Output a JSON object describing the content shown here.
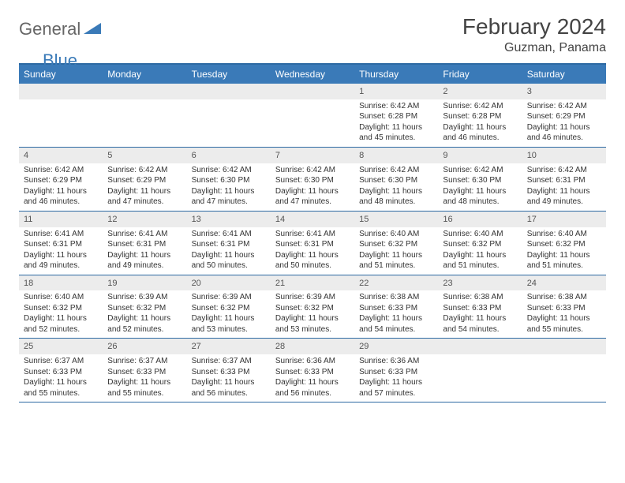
{
  "logo": {
    "general": "General",
    "blue": "Blue"
  },
  "title": "February 2024",
  "location": "Guzman, Panama",
  "colors": {
    "header_bg": "#3a7ab8",
    "border": "#2d6aa3",
    "daynum_bg": "#ececec",
    "text": "#333333"
  },
  "day_names": [
    "Sunday",
    "Monday",
    "Tuesday",
    "Wednesday",
    "Thursday",
    "Friday",
    "Saturday"
  ],
  "weeks": [
    [
      {
        "n": "",
        "sr": "",
        "ss": "",
        "dl": ""
      },
      {
        "n": "",
        "sr": "",
        "ss": "",
        "dl": ""
      },
      {
        "n": "",
        "sr": "",
        "ss": "",
        "dl": ""
      },
      {
        "n": "",
        "sr": "",
        "ss": "",
        "dl": ""
      },
      {
        "n": "1",
        "sr": "Sunrise: 6:42 AM",
        "ss": "Sunset: 6:28 PM",
        "dl": "Daylight: 11 hours and 45 minutes."
      },
      {
        "n": "2",
        "sr": "Sunrise: 6:42 AM",
        "ss": "Sunset: 6:28 PM",
        "dl": "Daylight: 11 hours and 46 minutes."
      },
      {
        "n": "3",
        "sr": "Sunrise: 6:42 AM",
        "ss": "Sunset: 6:29 PM",
        "dl": "Daylight: 11 hours and 46 minutes."
      }
    ],
    [
      {
        "n": "4",
        "sr": "Sunrise: 6:42 AM",
        "ss": "Sunset: 6:29 PM",
        "dl": "Daylight: 11 hours and 46 minutes."
      },
      {
        "n": "5",
        "sr": "Sunrise: 6:42 AM",
        "ss": "Sunset: 6:29 PM",
        "dl": "Daylight: 11 hours and 47 minutes."
      },
      {
        "n": "6",
        "sr": "Sunrise: 6:42 AM",
        "ss": "Sunset: 6:30 PM",
        "dl": "Daylight: 11 hours and 47 minutes."
      },
      {
        "n": "7",
        "sr": "Sunrise: 6:42 AM",
        "ss": "Sunset: 6:30 PM",
        "dl": "Daylight: 11 hours and 47 minutes."
      },
      {
        "n": "8",
        "sr": "Sunrise: 6:42 AM",
        "ss": "Sunset: 6:30 PM",
        "dl": "Daylight: 11 hours and 48 minutes."
      },
      {
        "n": "9",
        "sr": "Sunrise: 6:42 AM",
        "ss": "Sunset: 6:30 PM",
        "dl": "Daylight: 11 hours and 48 minutes."
      },
      {
        "n": "10",
        "sr": "Sunrise: 6:42 AM",
        "ss": "Sunset: 6:31 PM",
        "dl": "Daylight: 11 hours and 49 minutes."
      }
    ],
    [
      {
        "n": "11",
        "sr": "Sunrise: 6:41 AM",
        "ss": "Sunset: 6:31 PM",
        "dl": "Daylight: 11 hours and 49 minutes."
      },
      {
        "n": "12",
        "sr": "Sunrise: 6:41 AM",
        "ss": "Sunset: 6:31 PM",
        "dl": "Daylight: 11 hours and 49 minutes."
      },
      {
        "n": "13",
        "sr": "Sunrise: 6:41 AM",
        "ss": "Sunset: 6:31 PM",
        "dl": "Daylight: 11 hours and 50 minutes."
      },
      {
        "n": "14",
        "sr": "Sunrise: 6:41 AM",
        "ss": "Sunset: 6:31 PM",
        "dl": "Daylight: 11 hours and 50 minutes."
      },
      {
        "n": "15",
        "sr": "Sunrise: 6:40 AM",
        "ss": "Sunset: 6:32 PM",
        "dl": "Daylight: 11 hours and 51 minutes."
      },
      {
        "n": "16",
        "sr": "Sunrise: 6:40 AM",
        "ss": "Sunset: 6:32 PM",
        "dl": "Daylight: 11 hours and 51 minutes."
      },
      {
        "n": "17",
        "sr": "Sunrise: 6:40 AM",
        "ss": "Sunset: 6:32 PM",
        "dl": "Daylight: 11 hours and 51 minutes."
      }
    ],
    [
      {
        "n": "18",
        "sr": "Sunrise: 6:40 AM",
        "ss": "Sunset: 6:32 PM",
        "dl": "Daylight: 11 hours and 52 minutes."
      },
      {
        "n": "19",
        "sr": "Sunrise: 6:39 AM",
        "ss": "Sunset: 6:32 PM",
        "dl": "Daylight: 11 hours and 52 minutes."
      },
      {
        "n": "20",
        "sr": "Sunrise: 6:39 AM",
        "ss": "Sunset: 6:32 PM",
        "dl": "Daylight: 11 hours and 53 minutes."
      },
      {
        "n": "21",
        "sr": "Sunrise: 6:39 AM",
        "ss": "Sunset: 6:32 PM",
        "dl": "Daylight: 11 hours and 53 minutes."
      },
      {
        "n": "22",
        "sr": "Sunrise: 6:38 AM",
        "ss": "Sunset: 6:33 PM",
        "dl": "Daylight: 11 hours and 54 minutes."
      },
      {
        "n": "23",
        "sr": "Sunrise: 6:38 AM",
        "ss": "Sunset: 6:33 PM",
        "dl": "Daylight: 11 hours and 54 minutes."
      },
      {
        "n": "24",
        "sr": "Sunrise: 6:38 AM",
        "ss": "Sunset: 6:33 PM",
        "dl": "Daylight: 11 hours and 55 minutes."
      }
    ],
    [
      {
        "n": "25",
        "sr": "Sunrise: 6:37 AM",
        "ss": "Sunset: 6:33 PM",
        "dl": "Daylight: 11 hours and 55 minutes."
      },
      {
        "n": "26",
        "sr": "Sunrise: 6:37 AM",
        "ss": "Sunset: 6:33 PM",
        "dl": "Daylight: 11 hours and 55 minutes."
      },
      {
        "n": "27",
        "sr": "Sunrise: 6:37 AM",
        "ss": "Sunset: 6:33 PM",
        "dl": "Daylight: 11 hours and 56 minutes."
      },
      {
        "n": "28",
        "sr": "Sunrise: 6:36 AM",
        "ss": "Sunset: 6:33 PM",
        "dl": "Daylight: 11 hours and 56 minutes."
      },
      {
        "n": "29",
        "sr": "Sunrise: 6:36 AM",
        "ss": "Sunset: 6:33 PM",
        "dl": "Daylight: 11 hours and 57 minutes."
      },
      {
        "n": "",
        "sr": "",
        "ss": "",
        "dl": ""
      },
      {
        "n": "",
        "sr": "",
        "ss": "",
        "dl": ""
      }
    ]
  ]
}
